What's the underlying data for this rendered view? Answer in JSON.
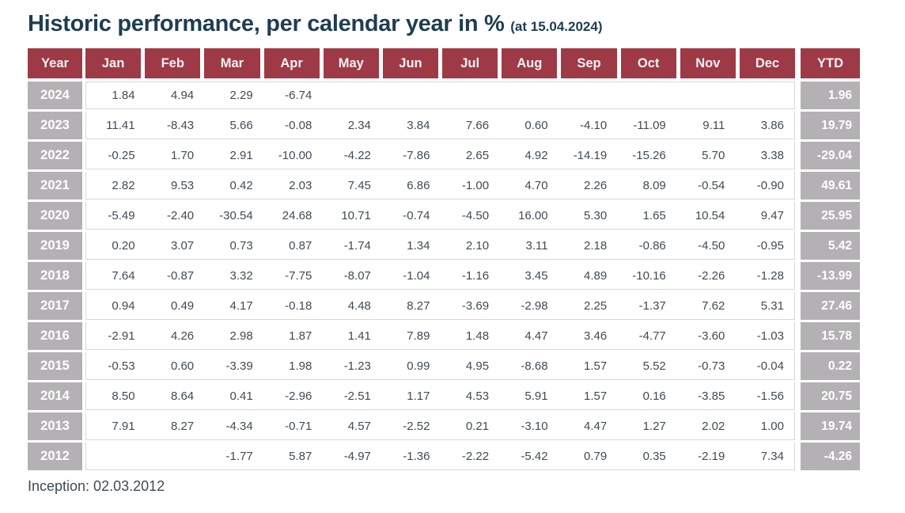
{
  "title": {
    "main": "Historic performance, per calendar year in %",
    "suffix": "(at 15.04.2024)"
  },
  "colors": {
    "header_bg": "#9e3a46",
    "year_ytd_bg": "#b4b1b4",
    "title_text": "#1e3d52",
    "cell_text": "#404b55",
    "row_line": "#d8d8d8"
  },
  "table": {
    "columns": [
      "Year",
      "Jan",
      "Feb",
      "Mar",
      "Apr",
      "May",
      "Jun",
      "Jul",
      "Aug",
      "Sep",
      "Oct",
      "Nov",
      "Dec",
      "YTD"
    ],
    "rows": [
      {
        "year": "2024",
        "months": [
          "1.84",
          "4.94",
          "2.29",
          "-6.74",
          "",
          "",
          "",
          "",
          "",
          "",
          "",
          ""
        ],
        "ytd": "1.96"
      },
      {
        "year": "2023",
        "months": [
          "11.41",
          "-8.43",
          "5.66",
          "-0.08",
          "2.34",
          "3.84",
          "7.66",
          "0.60",
          "-4.10",
          "-11.09",
          "9.11",
          "3.86"
        ],
        "ytd": "19.79"
      },
      {
        "year": "2022",
        "months": [
          "-0.25",
          "1.70",
          "2.91",
          "-10.00",
          "-4.22",
          "-7.86",
          "2.65",
          "4.92",
          "-14.19",
          "-15.26",
          "5.70",
          "3.38"
        ],
        "ytd": "-29.04"
      },
      {
        "year": "2021",
        "months": [
          "2.82",
          "9.53",
          "0.42",
          "2.03",
          "7.45",
          "6.86",
          "-1.00",
          "4.70",
          "2.26",
          "8.09",
          "-0.54",
          "-0.90"
        ],
        "ytd": "49.61"
      },
      {
        "year": "2020",
        "months": [
          "-5.49",
          "-2.40",
          "-30.54",
          "24.68",
          "10.71",
          "-0.74",
          "-4.50",
          "16.00",
          "5.30",
          "1.65",
          "10.54",
          "9.47"
        ],
        "ytd": "25.95"
      },
      {
        "year": "2019",
        "months": [
          "0.20",
          "3.07",
          "0.73",
          "0.87",
          "-1.74",
          "1.34",
          "2.10",
          "3.11",
          "2.18",
          "-0.86",
          "-4.50",
          "-0.95"
        ],
        "ytd": "5.42"
      },
      {
        "year": "2018",
        "months": [
          "7.64",
          "-0.87",
          "3.32",
          "-7.75",
          "-8.07",
          "-1.04",
          "-1.16",
          "3.45",
          "4.89",
          "-10.16",
          "-2.26",
          "-1.28"
        ],
        "ytd": "-13.99"
      },
      {
        "year": "2017",
        "months": [
          "0.94",
          "0.49",
          "4.17",
          "-0.18",
          "4.48",
          "8.27",
          "-3.69",
          "-2.98",
          "2.25",
          "-1.37",
          "7.62",
          "5.31"
        ],
        "ytd": "27.46"
      },
      {
        "year": "2016",
        "months": [
          "-2.91",
          "4.26",
          "2.98",
          "1.87",
          "1.41",
          "7.89",
          "1.48",
          "4.47",
          "3.46",
          "-4.77",
          "-3.60",
          "-1.03"
        ],
        "ytd": "15.78"
      },
      {
        "year": "2015",
        "months": [
          "-0.53",
          "0.60",
          "-3.39",
          "1.98",
          "-1.23",
          "0.99",
          "4.95",
          "-8.68",
          "1.57",
          "5.52",
          "-0.73",
          "-0.04"
        ],
        "ytd": "0.22"
      },
      {
        "year": "2014",
        "months": [
          "8.50",
          "8.64",
          "0.41",
          "-2.96",
          "-2.51",
          "1.17",
          "4.53",
          "5.91",
          "1.57",
          "0.16",
          "-3.85",
          "-1.56"
        ],
        "ytd": "20.75"
      },
      {
        "year": "2013",
        "months": [
          "7.91",
          "8.27",
          "-4.34",
          "-0.71",
          "4.57",
          "-2.52",
          "0.21",
          "-3.10",
          "4.47",
          "1.27",
          "2.02",
          "1.00"
        ],
        "ytd": "19.74"
      },
      {
        "year": "2012",
        "months": [
          "",
          "",
          "-1.77",
          "5.87",
          "-4.97",
          "-1.36",
          "-2.22",
          "-5.42",
          "0.79",
          "0.35",
          "-2.19",
          "7.34"
        ],
        "ytd": "-4.26"
      }
    ]
  },
  "footer": {
    "inception_label": "Inception: 02.03.2012"
  }
}
